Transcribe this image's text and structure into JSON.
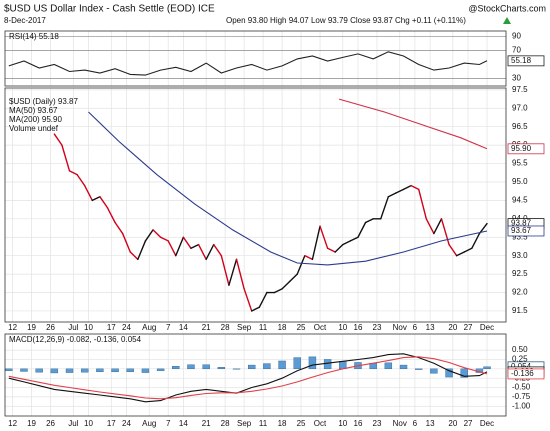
{
  "header": {
    "title": "$USD US Dollar Index - Cash Settle (EOD) ICE",
    "date": "8-Dec-2017",
    "credit": "@StockCharts.com",
    "quote": "Open 93.80  High 94.07  Low 93.79  Close 93.87  Chg +0.11 (+0.11%)"
  },
  "chart_data": [
    {
      "type": "line",
      "legend": "RSI(14) 55.18",
      "ylim": [
        19.5,
        97.5
      ],
      "yticks": [
        90,
        70,
        30
      ],
      "xlim": [
        0,
        132
      ],
      "grid": true,
      "series": [
        {
          "color": "#222222",
          "end_label": "55.18",
          "x": [
            1,
            5,
            9,
            13,
            17,
            21,
            25,
            29,
            33,
            37,
            41,
            45,
            49,
            53,
            57,
            61,
            65,
            69,
            73,
            77,
            81,
            85,
            89,
            93,
            97,
            101,
            105,
            109,
            113,
            117,
            121,
            125,
            127
          ],
          "values": [
            48,
            55,
            45,
            50,
            40,
            42,
            38,
            44,
            36,
            35,
            42,
            46,
            40,
            52,
            38,
            45,
            50,
            42,
            48,
            58,
            62,
            55,
            60,
            65,
            58,
            68,
            62,
            50,
            42,
            45,
            52,
            50,
            55.18
          ]
        }
      ]
    },
    {
      "type": "line",
      "ylim": [
        91.2,
        97.55
      ],
      "xlim": [
        0,
        132
      ],
      "grid": true,
      "annotations": [
        "Volume undef"
      ],
      "yticks": [
        97.5,
        {
          "value": 97,
          "label": "97.0"
        },
        96.5,
        {
          "value": 96,
          "label": "96.0"
        },
        95.5,
        {
          "value": 95,
          "label": "95.0"
        },
        94.5,
        {
          "value": 94,
          "label": "94.0"
        },
        93.5,
        {
          "value": 93,
          "label": "93.0"
        },
        92.5,
        {
          "value": 92,
          "label": "92.0"
        },
        91.5
      ],
      "xticks": [
        {
          "value": 2,
          "label": "12"
        },
        {
          "value": 7,
          "label": "19"
        },
        {
          "value": 12,
          "label": "26"
        },
        {
          "value": 18,
          "label": "Jul"
        },
        {
          "value": 22,
          "label": "10"
        },
        {
          "value": 28,
          "label": "17"
        },
        {
          "value": 32,
          "label": "24"
        },
        {
          "value": 38,
          "label": "Aug"
        },
        {
          "value": 43,
          "label": "7"
        },
        {
          "value": 47,
          "label": "14"
        },
        {
          "value": 53,
          "label": "21"
        },
        {
          "value": 58,
          "label": "28"
        },
        {
          "value": 63,
          "label": "Sep"
        },
        {
          "value": 68,
          "label": "11"
        },
        {
          "value": 73,
          "label": "18"
        },
        {
          "value": 78,
          "label": "25"
        },
        {
          "value": 83,
          "label": "Oct"
        },
        {
          "value": 89,
          "label": "10"
        },
        {
          "value": 93,
          "label": "16"
        },
        {
          "value": 98,
          "label": "23"
        },
        {
          "value": 104,
          "label": "Nov"
        },
        {
          "value": 108,
          "label": "6"
        },
        {
          "value": 112,
          "label": "13"
        },
        {
          "value": 118,
          "label": "20"
        },
        {
          "value": 122,
          "label": "27"
        },
        {
          "value": 127,
          "label": "Dec"
        }
      ],
      "series": [
        {
          "name": "$USD (Daily) 93.87",
          "color": "#111111",
          "down_color": "#d0021b",
          "end_label": "93.87",
          "x": [
            13,
            15,
            17,
            19,
            21,
            23,
            25,
            27,
            29,
            31,
            33,
            35,
            37,
            39,
            41,
            43,
            45,
            47,
            49,
            51,
            53,
            55,
            57,
            59,
            61,
            63,
            65,
            67,
            69,
            71,
            73,
            75,
            77,
            79,
            81,
            83,
            85,
            87,
            89,
            91,
            93,
            95,
            97,
            99,
            101,
            103,
            105,
            107,
            109,
            111,
            113,
            115,
            117,
            119,
            121,
            123,
            125,
            127
          ],
          "values": [
            96.3,
            96.0,
            95.3,
            95.2,
            94.9,
            94.5,
            94.6,
            94.3,
            93.9,
            93.6,
            93.1,
            92.9,
            93.4,
            93.7,
            93.5,
            93.4,
            93.0,
            93.5,
            93.2,
            93.3,
            92.9,
            93.3,
            93.0,
            92.2,
            92.9,
            92.1,
            91.5,
            91.6,
            92.0,
            92.0,
            92.1,
            92.3,
            92.5,
            93.0,
            92.9,
            93.8,
            93.2,
            93.1,
            93.3,
            93.4,
            93.5,
            93.9,
            94.0,
            94.0,
            94.6,
            94.7,
            94.8,
            94.9,
            94.8,
            94.0,
            93.6,
            94.0,
            93.3,
            93.0,
            93.1,
            93.2,
            93.6,
            93.87
          ]
        },
        {
          "name": "MA(50) 93.67",
          "color": "#2b3a8f",
          "end_label": "93.67",
          "x": [
            22,
            30,
            40,
            50,
            60,
            70,
            77,
            85,
            95,
            105,
            115,
            127
          ],
          "values": [
            96.9,
            96.1,
            95.2,
            94.4,
            93.7,
            93.1,
            92.8,
            92.75,
            92.85,
            93.1,
            93.4,
            93.67
          ]
        },
        {
          "name": "MA(200) 95.90",
          "color": "#d0304a",
          "end_label": "95.90",
          "x": [
            88,
            100,
            110,
            120,
            127
          ],
          "values": [
            97.25,
            96.9,
            96.55,
            96.2,
            95.9
          ]
        }
      ]
    },
    {
      "type": "line",
      "legend": "MACD(12,26,9) -0.082, -0.136, 0.054",
      "ylim": [
        -1.26,
        0.93
      ],
      "xlim": [
        0,
        132
      ],
      "grid": true,
      "yticks": [
        {
          "value": 0.5,
          "label": "0.50"
        },
        {
          "value": 0.25,
          "label": "0.25"
        },
        {
          "value": 0,
          "label": "0.00"
        },
        {
          "value": -0.25,
          "label": "-0.25"
        },
        {
          "value": -0.5,
          "label": "-0.50"
        },
        {
          "value": -0.75,
          "label": "-0.75"
        },
        {
          "value": -1,
          "label": "-1.00"
        }
      ],
      "xticks": [
        {
          "value": 2,
          "label": "12"
        },
        {
          "value": 7,
          "label": "19"
        },
        {
          "value": 12,
          "label": "26"
        },
        {
          "value": 18,
          "label": "Jul"
        },
        {
          "value": 22,
          "label": "10"
        },
        {
          "value": 28,
          "label": "17"
        },
        {
          "value": 32,
          "label": "24"
        },
        {
          "value": 38,
          "label": "Aug"
        },
        {
          "value": 43,
          "label": "7"
        },
        {
          "value": 47,
          "label": "14"
        },
        {
          "value": 53,
          "label": "21"
        },
        {
          "value": 58,
          "label": "28"
        },
        {
          "value": 63,
          "label": "Sep"
        },
        {
          "value": 68,
          "label": "11"
        },
        {
          "value": 73,
          "label": "18"
        },
        {
          "value": 78,
          "label": "25"
        },
        {
          "value": 83,
          "label": "Oct"
        },
        {
          "value": 89,
          "label": "10"
        },
        {
          "value": 93,
          "label": "16"
        },
        {
          "value": 98,
          "label": "23"
        },
        {
          "value": 104,
          "label": "Nov"
        },
        {
          "value": 108,
          "label": "6"
        },
        {
          "value": 112,
          "label": "13"
        },
        {
          "value": 118,
          "label": "20"
        },
        {
          "value": 122,
          "label": "27"
        },
        {
          "value": 127,
          "label": "Dec"
        }
      ],
      "series": [
        {
          "style": "bar",
          "color": "#5b9bd5",
          "end_label": "0.054",
          "x": [
            1,
            5,
            9,
            13,
            17,
            21,
            25,
            29,
            33,
            37,
            41,
            45,
            49,
            53,
            57,
            61,
            65,
            69,
            73,
            77,
            81,
            85,
            89,
            93,
            97,
            101,
            105,
            109,
            113,
            117,
            121,
            125,
            127
          ],
          "values": [
            -0.05,
            -0.07,
            -0.09,
            -0.11,
            -0.1,
            -0.09,
            -0.08,
            -0.08,
            -0.08,
            -0.1,
            -0.05,
            0.07,
            0.11,
            0.11,
            0.04,
            -0.01,
            0.1,
            0.14,
            0.21,
            0.3,
            0.32,
            0.25,
            0.2,
            0.17,
            0.15,
            0.16,
            0.1,
            -0.02,
            -0.12,
            -0.22,
            -0.23,
            -0.1,
            0.054
          ]
        },
        {
          "color": "#111111",
          "end_label": "-0.082",
          "x": [
            1,
            5,
            9,
            13,
            17,
            21,
            25,
            29,
            33,
            37,
            41,
            45,
            49,
            53,
            57,
            61,
            65,
            69,
            73,
            77,
            81,
            85,
            89,
            93,
            97,
            101,
            105,
            109,
            113,
            117,
            121,
            125,
            127
          ],
          "values": [
            -0.25,
            -0.35,
            -0.45,
            -0.55,
            -0.6,
            -0.65,
            -0.7,
            -0.75,
            -0.8,
            -0.88,
            -0.85,
            -0.7,
            -0.6,
            -0.55,
            -0.6,
            -0.65,
            -0.5,
            -0.4,
            -0.25,
            -0.05,
            0.1,
            0.15,
            0.2,
            0.25,
            0.3,
            0.38,
            0.4,
            0.3,
            0.15,
            -0.05,
            -0.2,
            -0.18,
            -0.082
          ]
        },
        {
          "color": "#e0404a",
          "end_label": "-0.136",
          "x": [
            1,
            5,
            9,
            13,
            17,
            21,
            25,
            29,
            33,
            37,
            41,
            45,
            49,
            53,
            57,
            61,
            65,
            69,
            73,
            77,
            81,
            85,
            89,
            93,
            97,
            101,
            105,
            109,
            113,
            117,
            121,
            125,
            127
          ],
          "values": [
            -0.2,
            -0.28,
            -0.36,
            -0.44,
            -0.5,
            -0.56,
            -0.62,
            -0.67,
            -0.72,
            -0.78,
            -0.8,
            -0.77,
            -0.71,
            -0.66,
            -0.64,
            -0.64,
            -0.6,
            -0.54,
            -0.46,
            -0.35,
            -0.22,
            -0.1,
            0.0,
            0.08,
            0.15,
            0.22,
            0.3,
            0.32,
            0.27,
            0.17,
            0.03,
            -0.08,
            -0.136
          ]
        }
      ]
    }
  ]
}
